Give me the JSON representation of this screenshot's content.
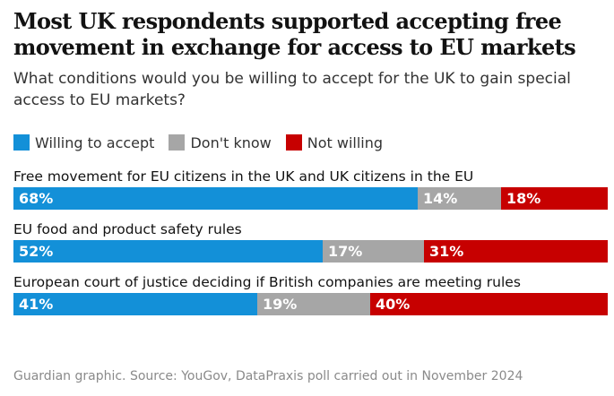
{
  "header": {
    "title": "Most UK respondents supported accepting free movement in exchange for access to EU markets",
    "subtitle": "What conditions would you be willing to accept for the UK to gain special access to EU markets?"
  },
  "colors": {
    "willing": "#1390d8",
    "dont_know": "#a6a6a6",
    "not_willing": "#c70000"
  },
  "chart_data": {
    "type": "bar",
    "orientation": "horizontal-stacked-100",
    "legend_position": "top-left",
    "series_names": [
      "Willing to accept",
      "Don't know",
      "Not willing"
    ],
    "categories": [
      "Free movement for EU citizens in the UK and UK citizens in the EU",
      "EU food and product safety rules",
      "European court of justice deciding if British companies are meeting rules"
    ],
    "series": [
      {
        "name": "Willing to accept",
        "values": [
          68,
          52,
          41
        ],
        "labels": [
          "68%",
          "52%",
          "41%"
        ]
      },
      {
        "name": "Don't know",
        "values": [
          14,
          17,
          19
        ],
        "labels": [
          "14%",
          "17%",
          "19%"
        ]
      },
      {
        "name": "Not willing",
        "values": [
          18,
          31,
          40
        ],
        "labels": [
          "18%",
          "31%",
          "40%"
        ]
      }
    ],
    "xlim": [
      0,
      100
    ]
  },
  "footer": {
    "source": "Guardian graphic. Source: YouGov, DataPraxis poll carried out in November 2024"
  }
}
